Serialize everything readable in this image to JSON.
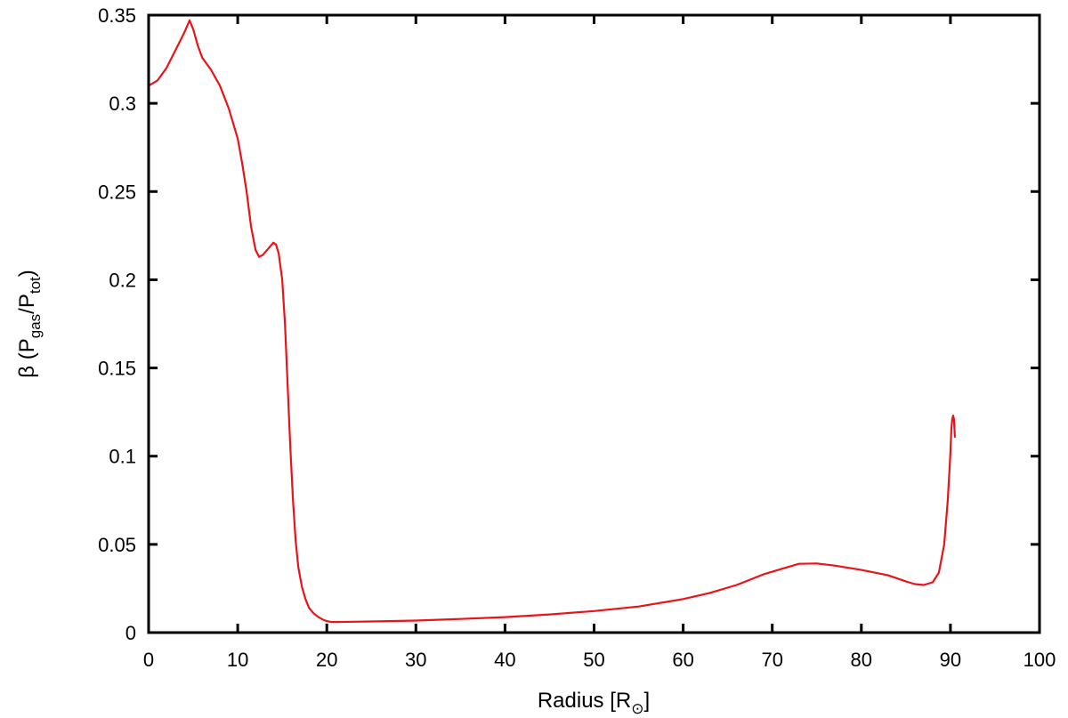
{
  "chart_data": {
    "type": "line",
    "xlabel": "Radius [R",
    "xlabel_symbol": "⊙",
    "xlabel_close": "]",
    "ylabel": {
      "prefix": "β (P",
      "sub1": "gas",
      "middle": "/P",
      "sub2": "tot",
      "suffix": ")"
    },
    "xlim": [
      0,
      100
    ],
    "ylim": [
      0,
      0.35
    ],
    "xticks": [
      "0",
      "10",
      "20",
      "30",
      "40",
      "50",
      "60",
      "70",
      "80",
      "90",
      "100"
    ],
    "yticks": [
      "0",
      "0.05",
      "0.1",
      "0.15",
      "0.2",
      "0.25",
      "0.3",
      "0.35"
    ],
    "grid": false,
    "legend": "none",
    "series": [
      {
        "color": "#e8141a",
        "x": [
          0,
          1,
          2,
          3,
          4,
          4.6,
          5,
          5.5,
          6,
          7,
          8,
          9,
          10,
          10.5,
          11,
          11.5,
          12,
          12.4,
          12.8,
          13.5,
          14,
          14.3,
          14.6,
          15,
          15.3,
          15.6,
          15.9,
          16.2,
          16.5,
          16.8,
          17.2,
          17.6,
          18,
          18.5,
          19,
          19.5,
          20,
          20.5,
          21,
          25,
          30,
          35,
          40,
          45,
          50,
          55,
          60,
          63,
          66,
          69,
          71,
          73,
          75,
          77,
          80,
          83,
          85,
          86,
          87,
          88,
          88.7,
          89.3,
          89.7,
          90,
          90.1,
          90.2,
          90.3,
          90.4,
          90.5
        ],
        "y": [
          0.31,
          0.313,
          0.32,
          0.33,
          0.34,
          0.347,
          0.342,
          0.333,
          0.326,
          0.319,
          0.31,
          0.297,
          0.28,
          0.266,
          0.25,
          0.23,
          0.217,
          0.213,
          0.214,
          0.218,
          0.221,
          0.22,
          0.215,
          0.2,
          0.175,
          0.14,
          0.105,
          0.075,
          0.052,
          0.037,
          0.026,
          0.019,
          0.014,
          0.011,
          0.009,
          0.0075,
          0.0065,
          0.006,
          0.006,
          0.0063,
          0.0068,
          0.0077,
          0.0088,
          0.0103,
          0.0122,
          0.0148,
          0.019,
          0.0225,
          0.027,
          0.033,
          0.036,
          0.039,
          0.0392,
          0.038,
          0.0355,
          0.0325,
          0.029,
          0.0275,
          0.027,
          0.0285,
          0.034,
          0.05,
          0.075,
          0.102,
          0.115,
          0.121,
          0.123,
          0.121,
          0.111
        ]
      }
    ]
  }
}
